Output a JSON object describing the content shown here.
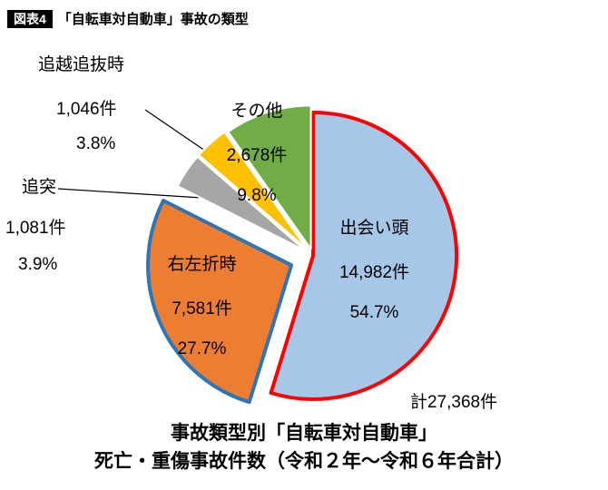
{
  "header": {
    "badge": "図表4",
    "title": "「自転車対自動車」事故の類型"
  },
  "chart_data": {
    "type": "pie",
    "title": "事故類型別「自転車対自動車」死亡・重傷事故件数（令和２年〜令和６年合計）",
    "total_label": "計27,368件",
    "total_value": 27368,
    "start_angle_deg": 0,
    "direction": "clockwise",
    "slices": [
      {
        "label": "出会い頭",
        "count_label": "14,982件",
        "value": 14982,
        "percent_label": "54.7%",
        "color": "#A7C7E8",
        "outline": "#FF0000",
        "outline_width": 4,
        "explode": 0
      },
      {
        "label": "右左折時",
        "count_label": "7,581件",
        "value": 7581,
        "percent_label": "27.7%",
        "color": "#ED7D31",
        "outline": "#2E75B6",
        "outline_width": 4,
        "explode": 26
      },
      {
        "label": "追突",
        "count_label": "1,081件",
        "value": 1081,
        "percent_label": "3.9%",
        "color": "#A6A6A6",
        "outline": "#FFFFFF",
        "outline_width": 2,
        "explode": 10
      },
      {
        "label": "追越追抜時",
        "count_label": "1,046件",
        "value": 1046,
        "percent_label": "3.8%",
        "color": "#FFC000",
        "outline": "#FFFFFF",
        "outline_width": 2,
        "explode": 10
      },
      {
        "label": "その他",
        "count_label": "2,678件",
        "value": 2678,
        "percent_label": "9.8%",
        "color": "#70AD47",
        "outline": "#FFFFFF",
        "outline_width": 2,
        "explode": 8
      }
    ]
  },
  "caption": {
    "line1": "事故類型別「自転車対自動車」",
    "line2": "死亡・重傷事故件数（令和２年〜令和６年合計）"
  }
}
